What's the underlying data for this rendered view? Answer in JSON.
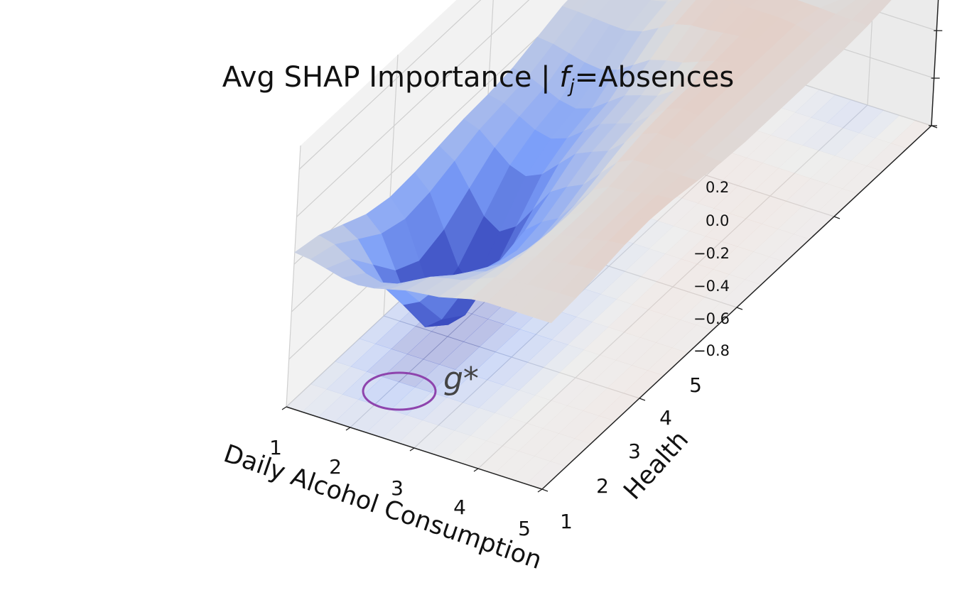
{
  "chart_data": {
    "type": "surface3d",
    "title_prefix": "Avg SHAP Importance | ",
    "title_var": "f",
    "title_sub": "j",
    "title_suffix": "=Absences",
    "xlabel": "Daily Alcohol Consumption",
    "ylabel": "Health",
    "xticks": [
      "1",
      "2",
      "3",
      "4",
      "5"
    ],
    "yticks": [
      "1",
      "2",
      "3",
      "4",
      "5"
    ],
    "zticks": [
      "0.2",
      "0.0",
      "−0.2",
      "−0.4",
      "−0.6",
      "−0.8"
    ],
    "x_range": [
      1,
      5
    ],
    "y_range": [
      1,
      5
    ],
    "zlim": [
      -0.8,
      0.3
    ],
    "x": [
      1,
      2,
      3,
      4,
      5
    ],
    "y": [
      1,
      2,
      3,
      4,
      5
    ],
    "z": [
      [
        -0.15,
        -0.2,
        -0.15,
        -0.1,
        -0.1
      ],
      [
        -0.3,
        -0.75,
        -0.35,
        -0.1,
        -0.05
      ],
      [
        -0.25,
        -0.35,
        -0.2,
        -0.05,
        -0.1
      ],
      [
        -0.15,
        -0.15,
        -0.05,
        -0.05,
        -0.1
      ],
      [
        -0.2,
        -0.05,
        -0.15,
        -0.25,
        -0.05
      ]
    ],
    "colormap": "coolwarm",
    "projection_contour": true,
    "annotation": "g*",
    "annotation_color": "#8e44ad",
    "grid": true
  }
}
